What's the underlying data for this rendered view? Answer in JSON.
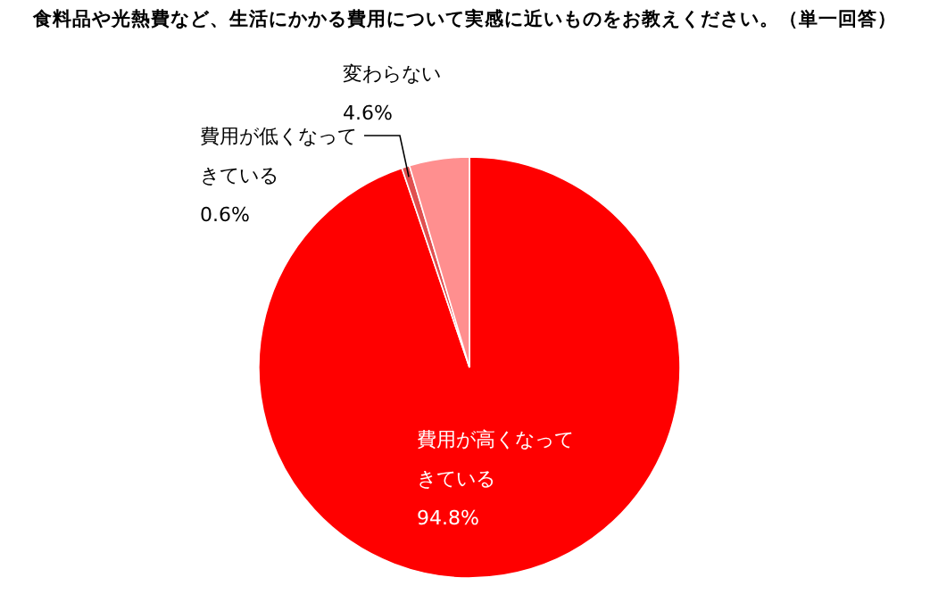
{
  "chart_data": {
    "type": "pie",
    "title": "食料品や光熱費など、生活にかかる費用について実感に近いものをお教えください。（単一回答）",
    "categories": [
      "費用が高くなってきている",
      "費用が低くなってきている",
      "変わらない"
    ],
    "values": [
      94.8,
      0.6,
      4.6
    ],
    "colors": [
      "#ff0000",
      "#e05050",
      "#ff8f8f"
    ],
    "value_labels": [
      "94.8%",
      "0.6%",
      "4.6%"
    ]
  }
}
